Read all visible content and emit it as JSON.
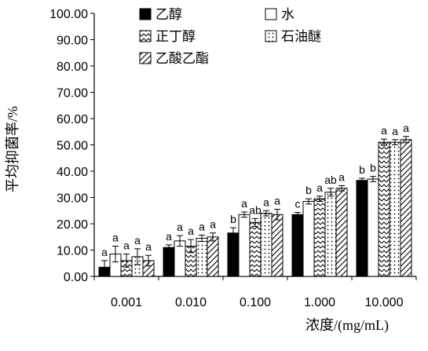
{
  "chart_data": {
    "type": "bar",
    "xlabel": "浓度/(mg/mL)",
    "ylabel": "平均抑菌率/%",
    "ylim": [
      0,
      100
    ],
    "yticks": [
      "0.00",
      "10.00",
      "20.00",
      "30.00",
      "40.00",
      "50.00",
      "60.00",
      "70.00",
      "80.00",
      "90.00",
      "100.00"
    ],
    "categories": [
      "0.001",
      "0.010",
      "0.100",
      "1.000",
      "10.000"
    ],
    "legend_position": "top",
    "series": [
      {
        "name": "乙醇",
        "pattern": "solid-black",
        "values": [
          3.5,
          11.0,
          16.5,
          23.5,
          36.5
        ],
        "errors": [
          2.5,
          1.0,
          2.0,
          0.8,
          0.8
        ],
        "letters": [
          "a",
          "a",
          "b",
          "c",
          "b"
        ]
      },
      {
        "name": "水",
        "pattern": "white",
        "values": [
          8.5,
          13.5,
          23.5,
          28.5,
          37.0
        ],
        "errors": [
          3.0,
          2.0,
          1.0,
          1.0,
          1.0
        ],
        "letters": [
          "a",
          "a",
          "a",
          "b",
          "b"
        ]
      },
      {
        "name": "正丁醇",
        "pattern": "zigzag",
        "values": [
          6.0,
          11.5,
          20.5,
          29.5,
          51.0
        ],
        "errors": [
          2.5,
          2.5,
          1.5,
          1.0,
          1.2
        ],
        "letters": [
          "a",
          "a",
          "ab",
          "a",
          "a"
        ]
      },
      {
        "name": "石油醚",
        "pattern": "dotted",
        "values": [
          7.5,
          14.5,
          24.0,
          32.0,
          51.0
        ],
        "errors": [
          3.0,
          1.2,
          1.0,
          1.5,
          1.0
        ],
        "letters": [
          "a",
          "a",
          "a",
          "ab",
          "a"
        ]
      },
      {
        "name": "乙酸乙酯",
        "pattern": "diagonal",
        "values": [
          6.0,
          15.0,
          23.5,
          33.5,
          52.0
        ],
        "errors": [
          2.0,
          1.5,
          2.0,
          1.0,
          1.2
        ],
        "letters": [
          "a",
          "a",
          "a",
          "a",
          "a"
        ]
      }
    ]
  }
}
